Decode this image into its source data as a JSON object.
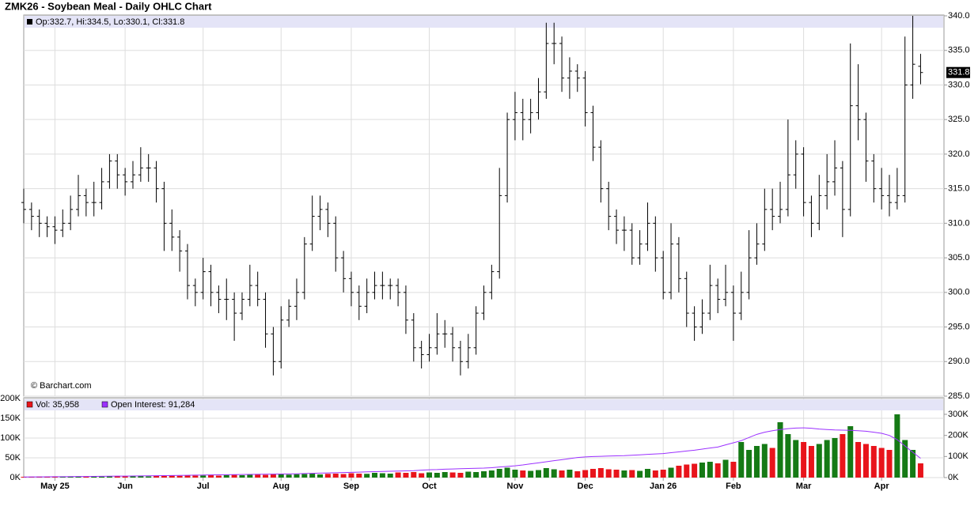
{
  "chart_data": [
    {
      "type": "ohlc",
      "title": "ZMK26 - Soybean Meal - Daily OHLC Chart",
      "legend_label": "Op:332.7, Hi:334.5, Lo:330.1, Cl:331.8",
      "watermark": "© Barchart.com",
      "color": "#000000",
      "legend_color": "#e4e4f7",
      "grid": true,
      "xlim": [
        0,
        118
      ],
      "ylim": [
        285,
        340
      ],
      "yticks": [
        {
          "value": 285,
          "label": "285.0"
        },
        {
          "value": 290,
          "label": "290.0"
        },
        {
          "value": 295,
          "label": "295.0"
        },
        {
          "value": 300,
          "label": "300.0"
        },
        {
          "value": 305,
          "label": "305.0"
        },
        {
          "value": 310,
          "label": "310.0"
        },
        {
          "value": 315,
          "label": "315.0"
        },
        {
          "value": 320,
          "label": "320.0"
        },
        {
          "value": 325,
          "label": "325.0"
        },
        {
          "value": 330,
          "label": "330.0"
        },
        {
          "value": 335,
          "label": "335.0"
        },
        {
          "value": 340,
          "label": "340.0"
        }
      ],
      "open": [
        313,
        312,
        311,
        310,
        309.5,
        309,
        310,
        312,
        314,
        313,
        313,
        316,
        319,
        317,
        316,
        317,
        318,
        318,
        315,
        310,
        308,
        306,
        301,
        300,
        303,
        300,
        299,
        299,
        297,
        299,
        301,
        299,
        294,
        290,
        296,
        298,
        300,
        307,
        311,
        312,
        310,
        305,
        302,
        300,
        298,
        300,
        301,
        301,
        301,
        300,
        296,
        292,
        291,
        292,
        294,
        294,
        292,
        290,
        292,
        297,
        300,
        303,
        314,
        325,
        326,
        325,
        326,
        329,
        336,
        336,
        331,
        332,
        331,
        326,
        321,
        315,
        311,
        309,
        309,
        305,
        307,
        310,
        305,
        300,
        307,
        302,
        297,
        295,
        297,
        301,
        299,
        300,
        297,
        300,
        305,
        307,
        312,
        311,
        312,
        317,
        320,
        313,
        310,
        314,
        316,
        318,
        312,
        327,
        325,
        319,
        315,
        314,
        313,
        314,
        330,
        332.7
      ],
      "high": [
        315,
        313,
        312,
        311,
        311,
        312,
        314,
        317,
        315,
        316,
        318,
        320,
        320,
        318,
        319,
        321,
        320,
        319,
        316,
        312,
        309,
        307,
        302,
        305,
        304,
        301,
        302,
        300,
        300,
        304,
        303,
        300,
        295,
        298,
        299,
        302,
        308,
        314,
        314,
        313,
        311,
        306,
        303,
        301,
        302,
        303,
        303,
        302,
        302,
        301,
        297,
        293,
        294,
        297,
        296,
        295,
        293,
        294,
        298,
        301,
        304,
        318,
        326,
        329,
        328,
        328,
        331,
        339,
        339,
        337,
        334,
        333,
        332,
        327,
        322,
        316,
        312,
        311,
        310,
        309,
        313,
        311,
        306,
        310,
        308,
        303,
        298,
        299,
        304,
        302,
        304,
        301,
        303,
        309,
        310,
        315,
        315,
        316,
        325,
        322,
        321,
        314,
        317,
        320,
        322,
        319,
        336,
        333,
        326,
        320,
        318,
        317,
        318,
        337,
        340,
        334.5
      ],
      "low": [
        310,
        309,
        308,
        308,
        307,
        308,
        309,
        311,
        311,
        311,
        312,
        315,
        315,
        314,
        315,
        316,
        316,
        313,
        306,
        306,
        303,
        299,
        298,
        299,
        298,
        297,
        296,
        293,
        296,
        298,
        298,
        292,
        288,
        289,
        295,
        296,
        299,
        306,
        309,
        308,
        303,
        300,
        298,
        296,
        297,
        299,
        299,
        299,
        298,
        294,
        290,
        289,
        290,
        291,
        292,
        290,
        288,
        289,
        291,
        296,
        299,
        302,
        313,
        322,
        322,
        323,
        325,
        328,
        333,
        329,
        328,
        329,
        324,
        319,
        313,
        309,
        307,
        306,
        304,
        304,
        306,
        303,
        299,
        299,
        300,
        295,
        293,
        294,
        296,
        297,
        298,
        293,
        296,
        299,
        304,
        306,
        309,
        310,
        311,
        315,
        311,
        308,
        309,
        312,
        314,
        308,
        311,
        322,
        316,
        313,
        312,
        311,
        312,
        313,
        328,
        330.1
      ],
      "close": [
        312,
        311,
        310,
        309.5,
        309,
        310,
        312,
        314,
        313,
        313,
        316,
        319,
        317,
        316,
        317,
        318,
        318,
        315,
        310,
        308,
        306,
        301,
        300,
        303,
        300,
        299,
        299,
        297,
        299,
        301,
        299,
        294,
        290,
        296,
        298,
        300,
        307,
        311,
        312,
        310,
        305,
        302,
        300,
        298,
        300,
        301,
        301,
        301,
        300,
        296,
        292,
        291,
        292,
        294,
        294,
        292,
        290,
        292,
        297,
        300,
        303,
        314,
        325,
        326,
        325,
        326,
        329,
        336,
        336,
        331,
        332,
        331,
        326,
        321,
        315,
        311,
        309,
        309,
        305,
        307,
        310,
        305,
        300,
        307,
        302,
        297,
        295,
        297,
        301,
        299,
        300,
        297,
        300,
        305,
        307,
        312,
        311,
        312,
        317,
        320,
        313,
        310,
        314,
        316,
        318,
        312,
        327,
        325,
        319,
        315,
        314,
        313,
        314,
        330,
        333,
        331.8
      ]
    },
    {
      "type": "bar",
      "legend_color": "#e4e4f7",
      "grid": true,
      "xlim": [
        0,
        118
      ],
      "xticks": [
        {
          "value": 4,
          "label": "May 25"
        },
        {
          "value": 13,
          "label": "Jun"
        },
        {
          "value": 23,
          "label": "Jul"
        },
        {
          "value": 33,
          "label": "Aug"
        },
        {
          "value": 42,
          "label": "Sep"
        },
        {
          "value": 52,
          "label": "Oct"
        },
        {
          "value": 63,
          "label": "Nov"
        },
        {
          "value": 72,
          "label": "Dec"
        },
        {
          "value": 82,
          "label": "Jan 26"
        },
        {
          "value": 91,
          "label": "Feb"
        },
        {
          "value": 100,
          "label": "Mar"
        },
        {
          "value": 110,
          "label": "Apr"
        }
      ],
      "ylim": [
        0,
        200000
      ],
      "yticks": [
        {
          "value": 0,
          "label": "0K"
        },
        {
          "value": 50000,
          "label": "50K"
        },
        {
          "value": 100000,
          "label": "100K"
        },
        {
          "value": 150000,
          "label": "150K"
        },
        {
          "value": 200000,
          "label": "200K"
        }
      ],
      "y2lim": [
        0,
        375000
      ],
      "y2ticks": [
        {
          "value": 0,
          "label": "0K"
        },
        {
          "value": 100000,
          "label": "100K"
        },
        {
          "value": 200000,
          "label": "200K"
        },
        {
          "value": 300000,
          "label": "300K"
        }
      ],
      "series": [
        {
          "name": "Vol: 35,958",
          "color": "#e8141b",
          "up_color": "#157a15",
          "values": [
            2000,
            1500,
            2500,
            2000,
            3000,
            2000,
            2500,
            3000,
            2000,
            3500,
            2500,
            3000,
            4000,
            3000,
            3500,
            4000,
            3000,
            5000,
            4000,
            5000,
            4500,
            6000,
            5000,
            5500,
            6000,
            5000,
            6500,
            7000,
            6000,
            7500,
            8000,
            7000,
            9000,
            8000,
            7500,
            8500,
            9000,
            10000,
            8000,
            9500,
            10000,
            9000,
            11000,
            10000,
            9500,
            12000,
            11000,
            10000,
            13000,
            12000,
            14000,
            11000,
            13000,
            12000,
            14000,
            13000,
            12000,
            15000,
            14000,
            16000,
            18000,
            22000,
            25000,
            20000,
            18000,
            17000,
            19000,
            24000,
            21000,
            18000,
            20000,
            16000,
            19000,
            22000,
            24000,
            21000,
            20000,
            18000,
            19000,
            17000,
            22000,
            18000,
            20000,
            25000,
            30000,
            33000,
            35000,
            38000,
            40000,
            36000,
            45000,
            40000,
            90000,
            70000,
            80000,
            85000,
            75000,
            140000,
            110000,
            95000,
            90000,
            80000,
            85000,
            95000,
            100000,
            110000,
            130000,
            90000,
            85000,
            80000,
            75000,
            70000,
            160000,
            95000,
            70000,
            35958
          ]
        },
        {
          "name": "Open Interest: 91,284",
          "color": "#9b30ff",
          "axis": "y2",
          "type": "line",
          "values": [
            3000,
            3200,
            3500,
            3800,
            4000,
            4300,
            4600,
            5000,
            5300,
            5600,
            6000,
            6400,
            6800,
            7200,
            7600,
            8000,
            8500,
            9000,
            9500,
            10000,
            10500,
            11000,
            11500,
            12000,
            12500,
            13000,
            13500,
            14000,
            14500,
            15000,
            15500,
            16000,
            16500,
            17000,
            17500,
            18000,
            19000,
            20000,
            21000,
            22000,
            23000,
            24000,
            25000,
            26000,
            27000,
            28000,
            29000,
            30000,
            31000,
            32000,
            33000,
            35000,
            37000,
            38000,
            40000,
            41000,
            42000,
            43000,
            44000,
            45000,
            47000,
            50000,
            53000,
            56000,
            60000,
            65000,
            70000,
            75000,
            80000,
            85000,
            90000,
            95000,
            98000,
            100000,
            101000,
            102000,
            103000,
            104000,
            106000,
            108000,
            110000,
            112000,
            114000,
            118000,
            122000,
            126000,
            130000,
            135000,
            140000,
            145000,
            155000,
            165000,
            175000,
            190000,
            205000,
            215000,
            222000,
            228000,
            232000,
            235000,
            236000,
            234000,
            230000,
            228000,
            226000,
            225000,
            224000,
            222000,
            220000,
            215000,
            210000,
            200000,
            180000,
            150000,
            120000,
            91284
          ]
        }
      ]
    }
  ]
}
